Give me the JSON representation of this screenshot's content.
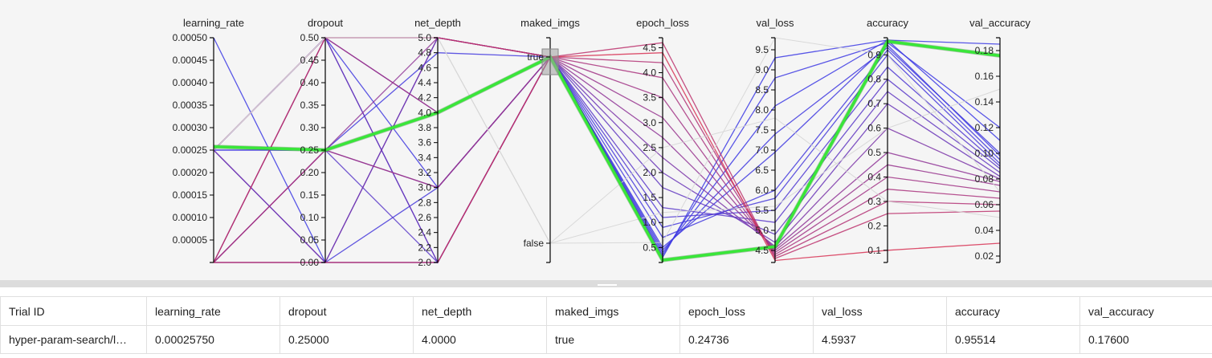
{
  "chart_data": {
    "type": "parallel_coordinates",
    "axes": [
      {
        "key": "learning_rate",
        "label": "learning_rate",
        "min": 0,
        "max": 0.0005,
        "ticks": [
          "0.00005",
          "0.00010",
          "0.00015",
          "0.00020",
          "0.00025",
          "0.00030",
          "0.00035",
          "0.00040",
          "0.00045",
          "0.00050"
        ]
      },
      {
        "key": "dropout",
        "label": "dropout",
        "min": 0,
        "max": 0.5,
        "ticks": [
          "0.00",
          "0.05",
          "0.10",
          "0.15",
          "0.20",
          "0.25",
          "0.30",
          "0.35",
          "0.40",
          "0.45",
          "0.50"
        ]
      },
      {
        "key": "net_depth",
        "label": "net_depth",
        "min": 2,
        "max": 5,
        "ticks": [
          "2.0",
          "2.2",
          "2.4",
          "2.6",
          "2.8",
          "3.0",
          "3.2",
          "3.4",
          "3.6",
          "3.8",
          "4.0",
          "4.2",
          "4.4",
          "4.6",
          "4.8",
          "5.0"
        ]
      },
      {
        "key": "maked_imgs",
        "label": "maked_imgs",
        "categorical": true,
        "categories": [
          "true",
          "false"
        ]
      },
      {
        "key": "epoch_loss",
        "label": "epoch_loss",
        "min": 0.2,
        "max": 4.7,
        "ticks": [
          "0.5",
          "1.0",
          "1.5",
          "2.0",
          "2.5",
          "3.0",
          "3.5",
          "4.0",
          "4.5"
        ]
      },
      {
        "key": "val_loss",
        "label": "val_loss",
        "min": 4.2,
        "max": 9.8,
        "ticks": [
          "4.5",
          "5.0",
          "5.5",
          "6.0",
          "6.5",
          "7.0",
          "7.5",
          "8.0",
          "8.5",
          "9.0",
          "9.5"
        ]
      },
      {
        "key": "accuracy",
        "label": "accuracy",
        "min": 0.05,
        "max": 0.97,
        "ticks": [
          "0.1",
          "0.2",
          "0.3",
          "0.4",
          "0.5",
          "0.6",
          "0.7",
          "0.8",
          "0.9"
        ]
      },
      {
        "key": "val_accuracy",
        "label": "val_accuracy",
        "min": 0.015,
        "max": 0.19,
        "ticks": [
          "0.02",
          "0.04",
          "0.06",
          "0.08",
          "0.10",
          "0.12",
          "0.14",
          "0.16",
          "0.18"
        ]
      }
    ],
    "highlighted_trial": {
      "learning_rate": 0.0002575,
      "dropout": 0.25,
      "net_depth": 4.0,
      "maked_imgs": "true",
      "epoch_loss": 0.24736,
      "val_loss": 4.5937,
      "accuracy": 0.95514,
      "val_accuracy": 0.176
    },
    "trials": [
      {
        "learning_rate": 0.0005,
        "dropout": 0.0,
        "net_depth": 2.0,
        "maked_imgs": "true",
        "epoch_loss": 0.3,
        "val_loss": 9.3,
        "accuracy": 0.96,
        "val_accuracy": 0.185
      },
      {
        "learning_rate": 0.00025,
        "dropout": 0.25,
        "net_depth": 3.0,
        "maked_imgs": "true",
        "epoch_loss": 0.35,
        "val_loss": 8.8,
        "accuracy": 0.95,
        "val_accuracy": 0.12
      },
      {
        "learning_rate": 0.00025,
        "dropout": 0.0,
        "net_depth": 2.0,
        "maked_imgs": "true",
        "epoch_loss": 0.4,
        "val_loss": 8.1,
        "accuracy": 0.96,
        "val_accuracy": 0.11
      },
      {
        "learning_rate": 0.00025,
        "dropout": 0.5,
        "net_depth": 3.0,
        "maked_imgs": "true",
        "epoch_loss": 0.45,
        "val_loss": 7.4,
        "accuracy": 0.93,
        "val_accuracy": 0.1
      },
      {
        "learning_rate": 0.0,
        "dropout": 0.0,
        "net_depth": 5.0,
        "maked_imgs": "true",
        "epoch_loss": 0.5,
        "val_loss": 6.95,
        "accuracy": 0.94,
        "val_accuracy": 0.098
      },
      {
        "learning_rate": 0.00025,
        "dropout": 0.25,
        "net_depth": 4.8,
        "maked_imgs": "true",
        "epoch_loss": 0.7,
        "val_loss": 6.0,
        "accuracy": 0.92,
        "val_accuracy": 0.095
      },
      {
        "learning_rate": 0.0,
        "dropout": 0.0,
        "net_depth": 3.0,
        "maked_imgs": "true",
        "epoch_loss": 0.9,
        "val_loss": 5.8,
        "accuracy": 0.9,
        "val_accuracy": 0.092
      },
      {
        "learning_rate": 0.00025,
        "dropout": 0.5,
        "net_depth": 2.0,
        "maked_imgs": "true",
        "epoch_loss": 1.1,
        "val_loss": 5.5,
        "accuracy": 0.85,
        "val_accuracy": 0.09
      },
      {
        "learning_rate": 0.0,
        "dropout": 0.25,
        "net_depth": 2.0,
        "maked_imgs": "true",
        "epoch_loss": 1.3,
        "val_loss": 5.2,
        "accuracy": 0.8,
        "val_accuracy": 0.088
      },
      {
        "learning_rate": 0.00025,
        "dropout": 0.5,
        "net_depth": 4.0,
        "maked_imgs": "true",
        "epoch_loss": 1.7,
        "val_loss": 4.9,
        "accuracy": 0.75,
        "val_accuracy": 0.085
      },
      {
        "learning_rate": 0.0,
        "dropout": 0.5,
        "net_depth": 2.0,
        "maked_imgs": "true",
        "epoch_loss": 2.0,
        "val_loss": 4.7,
        "accuracy": 0.7,
        "val_accuracy": 0.082
      },
      {
        "learning_rate": 0.00025,
        "dropout": 0.0,
        "net_depth": 5.0,
        "maked_imgs": "true",
        "epoch_loss": 2.3,
        "val_loss": 4.6,
        "accuracy": 0.6,
        "val_accuracy": 0.08
      },
      {
        "learning_rate": 0.0,
        "dropout": 0.25,
        "net_depth": 5.0,
        "maked_imgs": "true",
        "epoch_loss": 2.7,
        "val_loss": 4.55,
        "accuracy": 0.5,
        "val_accuracy": 0.078
      },
      {
        "learning_rate": 0.00025,
        "dropout": 0.5,
        "net_depth": 5.0,
        "maked_imgs": "true",
        "epoch_loss": 3.1,
        "val_loss": 4.5,
        "accuracy": 0.45,
        "val_accuracy": 0.075
      },
      {
        "learning_rate": 0.0,
        "dropout": 0.5,
        "net_depth": 4.0,
        "maked_imgs": "true",
        "epoch_loss": 3.5,
        "val_loss": 4.45,
        "accuracy": 0.4,
        "val_accuracy": 0.07
      },
      {
        "learning_rate": 0.0,
        "dropout": 0.25,
        "net_depth": 3.0,
        "maked_imgs": "true",
        "epoch_loss": 3.9,
        "val_loss": 4.4,
        "accuracy": 0.35,
        "val_accuracy": 0.065
      },
      {
        "learning_rate": 0.00025,
        "dropout": 0.5,
        "net_depth": 5.0,
        "maked_imgs": "true",
        "epoch_loss": 4.2,
        "val_loss": 4.35,
        "accuracy": 0.3,
        "val_accuracy": 0.06
      },
      {
        "learning_rate": 0.0,
        "dropout": 0.5,
        "net_depth": 5.0,
        "maked_imgs": "true",
        "epoch_loss": 4.6,
        "val_loss": 4.3,
        "accuracy": 0.25,
        "val_accuracy": 0.055
      },
      {
        "learning_rate": 0.0,
        "dropout": 0.0,
        "net_depth": 2.0,
        "maked_imgs": "true",
        "epoch_loss": 4.4,
        "val_loss": 4.25,
        "accuracy": 0.1,
        "val_accuracy": 0.03
      },
      {
        "learning_rate": 0.00025,
        "dropout": 0.5,
        "net_depth": 5.0,
        "maked_imgs": "false",
        "epoch_loss": 1.2,
        "val_loss": 5.6,
        "accuracy": 0.6,
        "val_accuracy": 0.15
      },
      {
        "learning_rate": 0.00025,
        "dropout": 0.5,
        "net_depth": 5.0,
        "maked_imgs": "false",
        "epoch_loss": 2.5,
        "val_loss": 7.8,
        "accuracy": 0.3,
        "val_accuracy": 0.05
      },
      {
        "learning_rate": 0.00025,
        "dropout": 0.5,
        "net_depth": 5.0,
        "maked_imgs": "false",
        "epoch_loss": 0.6,
        "val_loss": 9.8,
        "accuracy": 0.9,
        "val_accuracy": 0.07
      }
    ]
  },
  "table": {
    "headers": [
      "Trial ID",
      "learning_rate",
      "dropout",
      "net_depth",
      "maked_imgs",
      "epoch_loss",
      "val_loss",
      "accuracy",
      "val_accuracy"
    ],
    "rows": [
      [
        "hyper-param-search/l…",
        "0.00025750",
        "0.25000",
        "4.0000",
        "true",
        "0.24736",
        "4.5937",
        "0.95514",
        "0.17600"
      ]
    ]
  },
  "colors": {
    "highlight": "#39e639",
    "grid_line": "#d6d6d6",
    "low_color": "#e0314b",
    "high_color": "#3a3ae6"
  }
}
